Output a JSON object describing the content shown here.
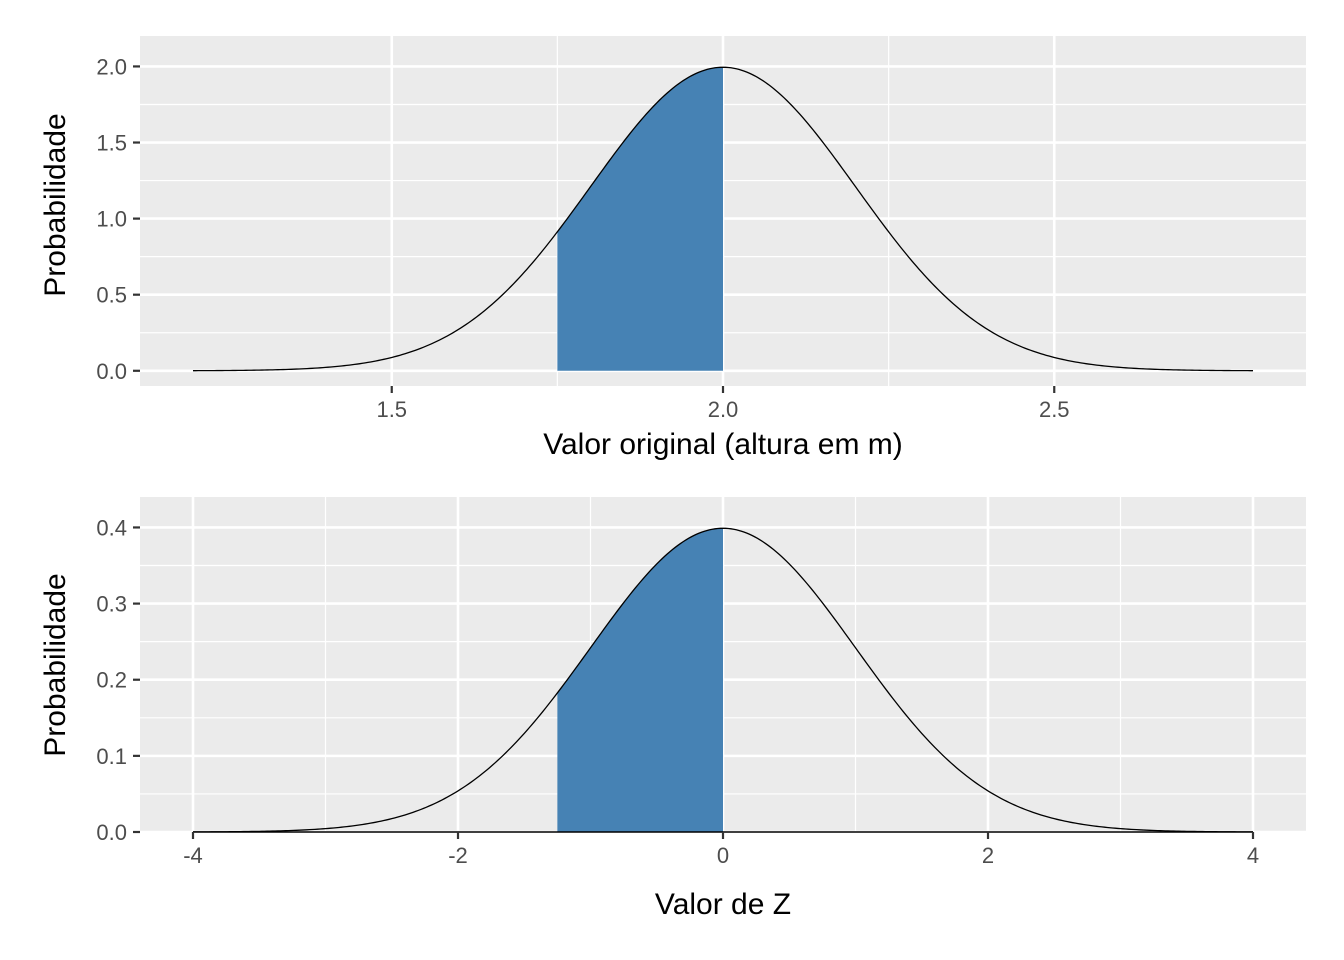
{
  "chart_data": [
    {
      "type": "area",
      "title": "",
      "xlabel": "Valor original (altura em m)",
      "ylabel": "Probabilidade",
      "xlim": [
        1.12,
        2.88
      ],
      "ylim": [
        -0.1,
        2.2
      ],
      "grid": true,
      "x_ticks": [
        1.5,
        2.0,
        2.5
      ],
      "x_tick_labels": [
        "1.5",
        "2.0",
        "2.5"
      ],
      "y_ticks": [
        0.0,
        0.5,
        1.0,
        1.5,
        2.0
      ],
      "y_tick_labels": [
        "0.0",
        "0.5",
        "1.0",
        "1.5",
        "2.0"
      ],
      "curve": {
        "distribution": "normal",
        "mean": 2.0,
        "sd": 0.2,
        "x_range": [
          1.2,
          2.8
        ]
      },
      "shaded_region": {
        "from": 1.75,
        "to": 2.0,
        "color": "#4682B4"
      }
    },
    {
      "type": "area",
      "title": "",
      "xlabel": "Valor de Z",
      "ylabel": "Probabilidade",
      "xlim": [
        -4.4,
        4.4
      ],
      "ylim": [
        0.0,
        0.44
      ],
      "grid": true,
      "x_ticks": [
        -4,
        -2,
        0,
        2,
        4
      ],
      "x_tick_labels": [
        "-4",
        "-2",
        "0",
        "2",
        "4"
      ],
      "y_ticks": [
        0.0,
        0.1,
        0.2,
        0.3,
        0.4
      ],
      "y_tick_labels": [
        "0.0",
        "0.1",
        "0.2",
        "0.3",
        "0.4"
      ],
      "curve": {
        "distribution": "normal",
        "mean": 0,
        "sd": 1,
        "x_range": [
          -4,
          4
        ]
      },
      "baseline_segment": [
        -4,
        4
      ],
      "shaded_region": {
        "from": -1.25,
        "to": 0.0,
        "color": "#4682B4"
      }
    }
  ]
}
